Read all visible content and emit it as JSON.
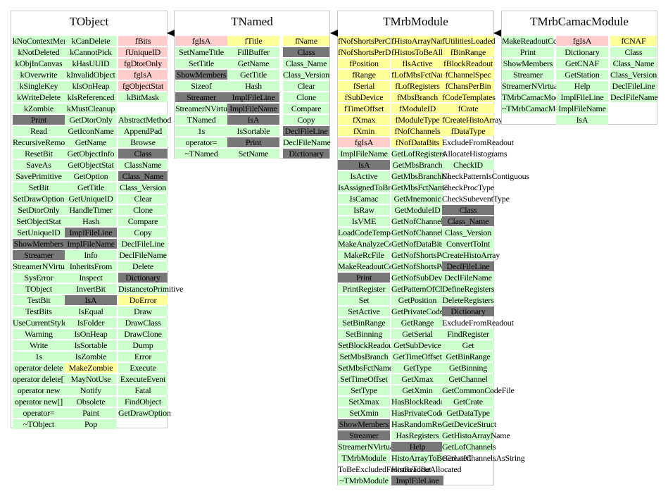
{
  "classes": [
    {
      "name": "TObject",
      "columns": [
        [
          [
            "kNoContextMenu",
            "m"
          ],
          [
            "kNotDeleted",
            "m"
          ],
          [
            "kObjInCanvas",
            "m"
          ],
          [
            "kOverwrite",
            "m"
          ],
          [
            "kSingleKey",
            "m"
          ],
          [
            "kWriteDelete",
            "m"
          ],
          [
            "kZombie",
            "m"
          ],
          [
            "Print",
            "inh"
          ],
          [
            "Read",
            "m"
          ],
          [
            "RecursiveRemove",
            "m"
          ],
          [
            "ResetBit",
            "m"
          ],
          [
            "SaveAs",
            "m"
          ],
          [
            "SavePrimitive",
            "m"
          ],
          [
            "SetBit",
            "m"
          ],
          [
            "SetDrawOption",
            "m"
          ],
          [
            "SetDtorOnly",
            "m"
          ],
          [
            "SetObjectStat",
            "m"
          ],
          [
            "SetUniqueID",
            "m"
          ],
          [
            "ShowMembers",
            "inh"
          ],
          [
            "Streamer",
            "inh"
          ],
          [
            "StreamerNVirtual",
            "m"
          ],
          [
            "SysError",
            "m"
          ],
          [
            "TObject",
            "m"
          ],
          [
            "TestBit",
            "m"
          ],
          [
            "TestBits",
            "m"
          ],
          [
            "UseCurrentStyle",
            "m"
          ],
          [
            "Warning",
            "m"
          ],
          [
            "Write",
            "m"
          ],
          [
            "1s",
            "m"
          ],
          [
            "operator delete",
            "m"
          ],
          [
            "operator delete[]",
            "m"
          ],
          [
            "operator new",
            "m"
          ],
          [
            "operator new[]",
            "m"
          ],
          [
            "operator=",
            "m"
          ],
          [
            "~TObject",
            "m"
          ]
        ],
        [
          [
            "kCanDelete",
            "m"
          ],
          [
            "kCannotPick",
            "m"
          ],
          [
            "kHasUUID",
            "m"
          ],
          [
            "kInvalidObject",
            "m"
          ],
          [
            "kIsOnHeap",
            "m"
          ],
          [
            "kIsReferenced",
            "m"
          ],
          [
            "kMustCleanup",
            "m"
          ],
          [
            "GetDtorOnly",
            "m"
          ],
          [
            "GetIconName",
            "m"
          ],
          [
            "GetName",
            "m"
          ],
          [
            "GetObjectInfo",
            "m"
          ],
          [
            "GetObjectStat",
            "m"
          ],
          [
            "GetOption",
            "m"
          ],
          [
            "GetTitle",
            "m"
          ],
          [
            "GetUniqueID",
            "m"
          ],
          [
            "HandleTimer",
            "m"
          ],
          [
            "Hash",
            "m"
          ],
          [
            "ImplFileLine",
            "inh"
          ],
          [
            "ImplFileName",
            "inh"
          ],
          [
            "Info",
            "m"
          ],
          [
            "InheritsFrom",
            "m"
          ],
          [
            "Inspect",
            "m"
          ],
          [
            "InvertBit",
            "m"
          ],
          [
            "IsA",
            "inh"
          ],
          [
            "IsEqual",
            "m"
          ],
          [
            "IsFolder",
            "m"
          ],
          [
            "IsOnHeap",
            "m"
          ],
          [
            "IsSortable",
            "m"
          ],
          [
            "IsZombie",
            "m"
          ],
          [
            "MakeZombie",
            "dm"
          ],
          [
            "MayNotUse",
            "m"
          ],
          [
            "Notify",
            "m"
          ],
          [
            "Obsolete",
            "m"
          ],
          [
            "Paint",
            "m"
          ],
          [
            "Pop",
            "m"
          ]
        ],
        [
          [
            "fBits",
            "df"
          ],
          [
            "fUniqueID",
            "df"
          ],
          [
            "fgDtorOnly",
            "df"
          ],
          [
            "fgIsA",
            "df"
          ],
          [
            "fgObjectStat",
            "df"
          ],
          [
            "kBitMask",
            "m"
          ],
          [
            "",
            "pl"
          ],
          [
            "AbstractMethod",
            "m"
          ],
          [
            "AppendPad",
            "m"
          ],
          [
            "Browse",
            "m"
          ],
          [
            "Class",
            "inh"
          ],
          [
            "ClassName",
            "m"
          ],
          [
            "Class_Name",
            "inh"
          ],
          [
            "Class_Version",
            "m"
          ],
          [
            "Clear",
            "m"
          ],
          [
            "Clone",
            "m"
          ],
          [
            "Compare",
            "m"
          ],
          [
            "Copy",
            "m"
          ],
          [
            "DeclFileLine",
            "m"
          ],
          [
            "DeclFileName",
            "m"
          ],
          [
            "Delete",
            "m"
          ],
          [
            "Dictionary",
            "inh"
          ],
          [
            "DistancetoPrimitive",
            "m"
          ],
          [
            "DoError",
            "dm"
          ],
          [
            "Draw",
            "m"
          ],
          [
            "DrawClass",
            "m"
          ],
          [
            "DrawClone",
            "m"
          ],
          [
            "Dump",
            "m"
          ],
          [
            "Error",
            "m"
          ],
          [
            "Execute",
            "m"
          ],
          [
            "ExecuteEvent",
            "m"
          ],
          [
            "Fatal",
            "m"
          ],
          [
            "FindObject",
            "m"
          ],
          [
            "GetDrawOption",
            "m"
          ]
        ]
      ]
    },
    {
      "name": "TNamed",
      "columns": [
        [
          [
            "fgIsA",
            "df"
          ],
          [
            "SetNameTitle",
            "m"
          ],
          [
            "SetTitle",
            "m"
          ],
          [
            "ShowMembers",
            "inh"
          ],
          [
            "Sizeof",
            "m"
          ],
          [
            "Streamer",
            "inh"
          ],
          [
            "StreamerNVirtual",
            "m"
          ],
          [
            "TNamed",
            "m"
          ],
          [
            "1s",
            "m"
          ],
          [
            "operator=",
            "m"
          ],
          [
            "~TNamed",
            "m"
          ]
        ],
        [
          [
            "fTitle",
            "dm"
          ],
          [
            "FillBuffer",
            "m"
          ],
          [
            "GetName",
            "m"
          ],
          [
            "GetTitle",
            "m"
          ],
          [
            "Hash",
            "m"
          ],
          [
            "ImplFileLine",
            "inh"
          ],
          [
            "ImplFileName",
            "inh"
          ],
          [
            "IsA",
            "inh"
          ],
          [
            "IsSortable",
            "m"
          ],
          [
            "Print",
            "inh"
          ],
          [
            "SetName",
            "m"
          ]
        ],
        [
          [
            "fName",
            "dm"
          ],
          [
            "Class",
            "inh"
          ],
          [
            "Class_Name",
            "m"
          ],
          [
            "Class_Version",
            "m"
          ],
          [
            "Clear",
            "m"
          ],
          [
            "Clone",
            "m"
          ],
          [
            "Compare",
            "m"
          ],
          [
            "Copy",
            "m"
          ],
          [
            "DeclFileLine",
            "inh"
          ],
          [
            "DeclFileName",
            "m"
          ],
          [
            "Dictionary",
            "inh"
          ]
        ]
      ]
    },
    {
      "name": "TMrbModule",
      "columns": [
        [
          [
            "fNofShortsPerChannel",
            "dm"
          ],
          [
            "fNofShortsPerDatum",
            "dm"
          ],
          [
            "fPosition",
            "dm"
          ],
          [
            "fRange",
            "dm"
          ],
          [
            "fSerial",
            "dm"
          ],
          [
            "fSubDevice",
            "dm"
          ],
          [
            "fTimeOffset",
            "dm"
          ],
          [
            "fXmax",
            "dm"
          ],
          [
            "fXmin",
            "dm"
          ],
          [
            "fgIsA",
            "df"
          ],
          [
            "ImplFileName",
            "m"
          ],
          [
            "IsA",
            "inh"
          ],
          [
            "IsActive",
            "m"
          ],
          [
            "IsAssignedToBranch",
            "m"
          ],
          [
            "IsCamac",
            "m"
          ],
          [
            "IsRaw",
            "m"
          ],
          [
            "IsVME",
            "m"
          ],
          [
            "LoadCodeTemplates",
            "m"
          ],
          [
            "MakeAnalyzeCode",
            "m"
          ],
          [
            "MakeRcFile",
            "m"
          ],
          [
            "MakeReadoutCode",
            "m"
          ],
          [
            "Print",
            "inh"
          ],
          [
            "PrintRegister",
            "m"
          ],
          [
            "Set",
            "m"
          ],
          [
            "SetActive",
            "m"
          ],
          [
            "SetBinRange",
            "m"
          ],
          [
            "SetBinning",
            "m"
          ],
          [
            "SetBlockReadout",
            "m"
          ],
          [
            "SetMbsBranch",
            "m"
          ],
          [
            "SetMbsFctName",
            "m"
          ],
          [
            "SetTimeOffset",
            "m"
          ],
          [
            "SetType",
            "m"
          ],
          [
            "SetXmax",
            "m"
          ],
          [
            "SetXmin",
            "m"
          ],
          [
            "ShowMembers",
            "inh"
          ],
          [
            "Streamer",
            "inh"
          ],
          [
            "StreamerNVirtual",
            "m"
          ],
          [
            "TMrbModule",
            "m"
          ],
          [
            "ToBeExcludedFromReadout",
            "pl"
          ],
          [
            "~TMrbModule",
            "m"
          ]
        ],
        [
          [
            "fHistoArrayName",
            "dm"
          ],
          [
            "fHistosToBeAllocated",
            "dm"
          ],
          [
            "fIsActive",
            "dm"
          ],
          [
            "fLofMbsFctNames",
            "dm"
          ],
          [
            "fLofRegisters",
            "dm"
          ],
          [
            "fMbsBranch",
            "dm"
          ],
          [
            "fModuleID",
            "dm"
          ],
          [
            "fModuleType",
            "dm"
          ],
          [
            "fNofChannels",
            "dm"
          ],
          [
            "fNofDataBits",
            "dm"
          ],
          [
            "GetLofRegisters",
            "m"
          ],
          [
            "GetMbsBranch",
            "m"
          ],
          [
            "GetMbsBranchNo",
            "m"
          ],
          [
            "GetMbsFctName",
            "m"
          ],
          [
            "GetMnemonic",
            "m"
          ],
          [
            "GetModuleID",
            "m"
          ],
          [
            "GetNofChannels",
            "m"
          ],
          [
            "GetNofChannelsUsed",
            "m"
          ],
          [
            "GetNofDataBits",
            "m"
          ],
          [
            "GetNofShortsPerChannel",
            "m"
          ],
          [
            "GetNofShortsPerDatum",
            "m"
          ],
          [
            "GetNofSubDevices",
            "m"
          ],
          [
            "GetPatternOfChannelsUsed",
            "m"
          ],
          [
            "GetPosition",
            "m"
          ],
          [
            "GetPrivateCodeFile",
            "m"
          ],
          [
            "GetRange",
            "m"
          ],
          [
            "GetSerial",
            "m"
          ],
          [
            "GetSubDevice",
            "m"
          ],
          [
            "GetTimeOffset",
            "m"
          ],
          [
            "GetType",
            "m"
          ],
          [
            "GetXmax",
            "m"
          ],
          [
            "GetXmin",
            "m"
          ],
          [
            "HasBlockReadout",
            "m"
          ],
          [
            "HasPrivateCode",
            "m"
          ],
          [
            "HasRandomReadout",
            "m"
          ],
          [
            "HasRegisters",
            "m"
          ],
          [
            "Help",
            "inh"
          ],
          [
            "HistoArrayToBeCreated",
            "m"
          ],
          [
            "HistosToBeAllocated",
            "pl"
          ],
          [
            "ImplFileLine",
            "inh"
          ]
        ],
        [
          [
            "fUtilitiesLoaded",
            "dm"
          ],
          [
            "fBinRange",
            "dm"
          ],
          [
            "fBlockReadout",
            "dm"
          ],
          [
            "fChannelSpec",
            "dm"
          ],
          [
            "fChansPerBin",
            "dm"
          ],
          [
            "fCodeTemplates",
            "dm"
          ],
          [
            "fCrate",
            "dm"
          ],
          [
            "fCreateHistoArray",
            "dm"
          ],
          [
            "fDataType",
            "dm"
          ],
          [
            "ExcludeFromReadout",
            "pl"
          ],
          [
            "AllocateHistograms",
            "pl"
          ],
          [
            "CheckID",
            "m"
          ],
          [
            "CheckPatternIsContiguous",
            "pl"
          ],
          [
            "CheckProcType",
            "pl"
          ],
          [
            "CheckSubeventType",
            "pl"
          ],
          [
            "Class",
            "inh"
          ],
          [
            "Class_Name",
            "inh"
          ],
          [
            "Class_Version",
            "m"
          ],
          [
            "ConvertToInt",
            "m"
          ],
          [
            "CreateHistoArray",
            "m"
          ],
          [
            "DeclFileLine",
            "inh"
          ],
          [
            "DeclFileName",
            "m"
          ],
          [
            "DefineRegisters",
            "m"
          ],
          [
            "DeleteRegisters",
            "m"
          ],
          [
            "Dictionary",
            "inh"
          ],
          [
            "ExcludeFromReadout",
            "pl"
          ],
          [
            "FindRegister",
            "m"
          ],
          [
            "Get",
            "m"
          ],
          [
            "GetBinRange",
            "m"
          ],
          [
            "GetBinning",
            "m"
          ],
          [
            "GetChannel",
            "m"
          ],
          [
            "GetCommonCodeFile",
            "m"
          ],
          [
            "GetCrate",
            "m"
          ],
          [
            "GetDataType",
            "m"
          ],
          [
            "GetDeviceStruct",
            "m"
          ],
          [
            "GetHistoArrayName",
            "m"
          ],
          [
            "GetLofChannels",
            "m"
          ],
          [
            "GetLofChannelsAsString",
            "pl"
          ]
        ]
      ]
    },
    {
      "name": "TMrbCamacModule",
      "columns": [
        [
          [
            "MakeReadoutCode",
            "m"
          ],
          [
            "Print",
            "m"
          ],
          [
            "ShowMembers",
            "m"
          ],
          [
            "Streamer",
            "m"
          ],
          [
            "StreamerNVirtual",
            "m"
          ],
          [
            "TMrbCamacModule",
            "m"
          ],
          [
            "~TMrbCamacModule",
            "m"
          ]
        ],
        [
          [
            "fgIsA",
            "df"
          ],
          [
            "Dictionary",
            "m"
          ],
          [
            "GetCNAF",
            "m"
          ],
          [
            "GetStation",
            "m"
          ],
          [
            "Help",
            "m"
          ],
          [
            "ImplFileLine",
            "m"
          ],
          [
            "ImplFileName",
            "m"
          ],
          [
            "IsA",
            "m"
          ]
        ],
        [
          [
            "fCNAF",
            "dm"
          ],
          [
            "Class",
            "m"
          ],
          [
            "Class_Name",
            "m"
          ],
          [
            "Class_Version",
            "m"
          ],
          [
            "DeclFileLine",
            "m"
          ],
          [
            "DeclFileName",
            "m"
          ]
        ]
      ]
    }
  ]
}
